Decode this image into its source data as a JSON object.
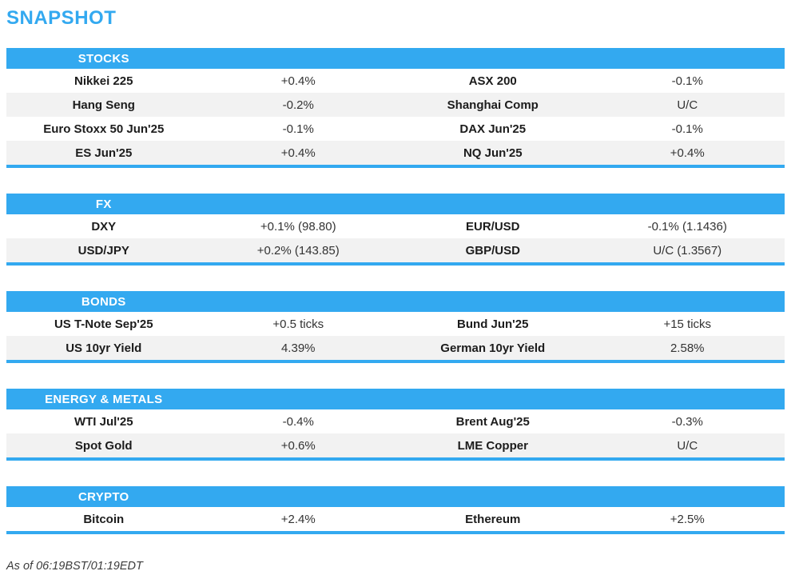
{
  "page": {
    "title": "SNAPSHOT",
    "footer": "As of 06:19BST/01:19EDT"
  },
  "colors": {
    "accent": "#33A9F0",
    "row_alt": "#F2F2F2",
    "header_text": "#FFFFFF"
  },
  "sections": [
    {
      "label": "STOCKS",
      "rows": [
        [
          {
            "name": "Nikkei 225",
            "value": "+0.4%"
          },
          {
            "name": "ASX 200",
            "value": "-0.1%"
          }
        ],
        [
          {
            "name": "Hang Seng",
            "value": "-0.2%"
          },
          {
            "name": "Shanghai Comp",
            "value": "U/C"
          }
        ],
        [
          {
            "name": "Euro Stoxx 50 Jun'25",
            "value": "-0.1%"
          },
          {
            "name": "DAX Jun'25",
            "value": "-0.1%"
          }
        ],
        [
          {
            "name": "ES Jun'25",
            "value": "+0.4%"
          },
          {
            "name": "NQ Jun'25",
            "value": "+0.4%"
          }
        ]
      ]
    },
    {
      "label": "FX",
      "rows": [
        [
          {
            "name": "DXY",
            "value": "+0.1% (98.80)"
          },
          {
            "name": "EUR/USD",
            "value": "-0.1% (1.1436)"
          }
        ],
        [
          {
            "name": "USD/JPY",
            "value": "+0.2% (143.85)"
          },
          {
            "name": "GBP/USD",
            "value": "U/C (1.3567)"
          }
        ]
      ]
    },
    {
      "label": "BONDS",
      "rows": [
        [
          {
            "name": "US T-Note Sep'25",
            "value": "+0.5 ticks"
          },
          {
            "name": "Bund Jun'25",
            "value": "+15 ticks"
          }
        ],
        [
          {
            "name": "US 10yr Yield",
            "value": "4.39%"
          },
          {
            "name": "German 10yr Yield",
            "value": "2.58%"
          }
        ]
      ]
    },
    {
      "label": "ENERGY & METALS",
      "rows": [
        [
          {
            "name": "WTI Jul'25",
            "value": "-0.4%"
          },
          {
            "name": "Brent Aug'25",
            "value": "-0.3%"
          }
        ],
        [
          {
            "name": "Spot Gold",
            "value": "+0.6%"
          },
          {
            "name": "LME Copper",
            "value": "U/C"
          }
        ]
      ]
    },
    {
      "label": "CRYPTO",
      "rows": [
        [
          {
            "name": "Bitcoin",
            "value": "+2.4%"
          },
          {
            "name": "Ethereum",
            "value": "+2.5%"
          }
        ]
      ]
    }
  ]
}
